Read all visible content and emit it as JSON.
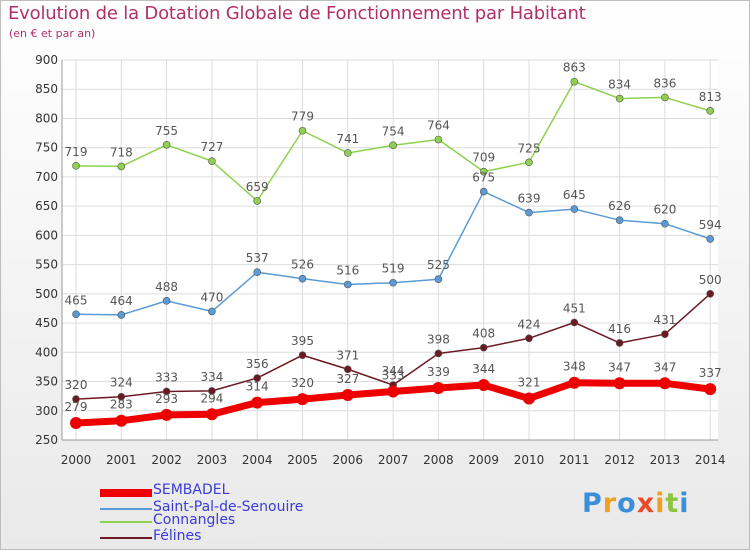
{
  "header": {
    "title": "Evolution de la Dotation Globale de Fonctionnement par Habitant",
    "subtitle": "(en € et par an)"
  },
  "logo": {
    "text": "Proxiti"
  },
  "colors": {
    "title": "#b0306a",
    "legend_text": "#3b3bd8",
    "grid": "#dcdcdc",
    "axis_text": "#333333"
  },
  "chart_data": {
    "type": "line",
    "x": [
      "2000",
      "2001",
      "2002",
      "2003",
      "2004",
      "2005",
      "2006",
      "2007",
      "2008",
      "2009",
      "2010",
      "2011",
      "2012",
      "2013",
      "2014"
    ],
    "ylim": [
      250,
      900
    ],
    "yticks": [
      250,
      300,
      350,
      400,
      450,
      500,
      550,
      600,
      650,
      700,
      750,
      800,
      850,
      900
    ],
    "grid": true,
    "legend_position": "bottom-left",
    "series": [
      {
        "name": "Connangles",
        "color": "#8fd14f",
        "values": [
          719,
          718,
          755,
          727,
          659,
          779,
          741,
          754,
          764,
          709,
          725,
          863,
          834,
          836,
          813
        ]
      },
      {
        "name": "Saint-Pal-de-Senouire",
        "color": "#5a9bd5",
        "values": [
          465,
          464,
          488,
          470,
          537,
          526,
          516,
          519,
          525,
          675,
          639,
          645,
          626,
          620,
          594
        ]
      },
      {
        "name": "Félines",
        "color": "#6b1a24",
        "values": [
          320,
          324,
          333,
          334,
          356,
          395,
          371,
          344,
          398,
          408,
          424,
          451,
          416,
          431,
          500
        ]
      },
      {
        "name": "SEMBADEL",
        "color": "#ee0000",
        "values": [
          279,
          283,
          293,
          294,
          314,
          320,
          327,
          333,
          339,
          344,
          321,
          348,
          347,
          347,
          337
        ]
      }
    ],
    "legend_order": [
      "SEMBADEL",
      "Saint-Pal-de-Senouire",
      "Connangles",
      "Félines"
    ]
  }
}
